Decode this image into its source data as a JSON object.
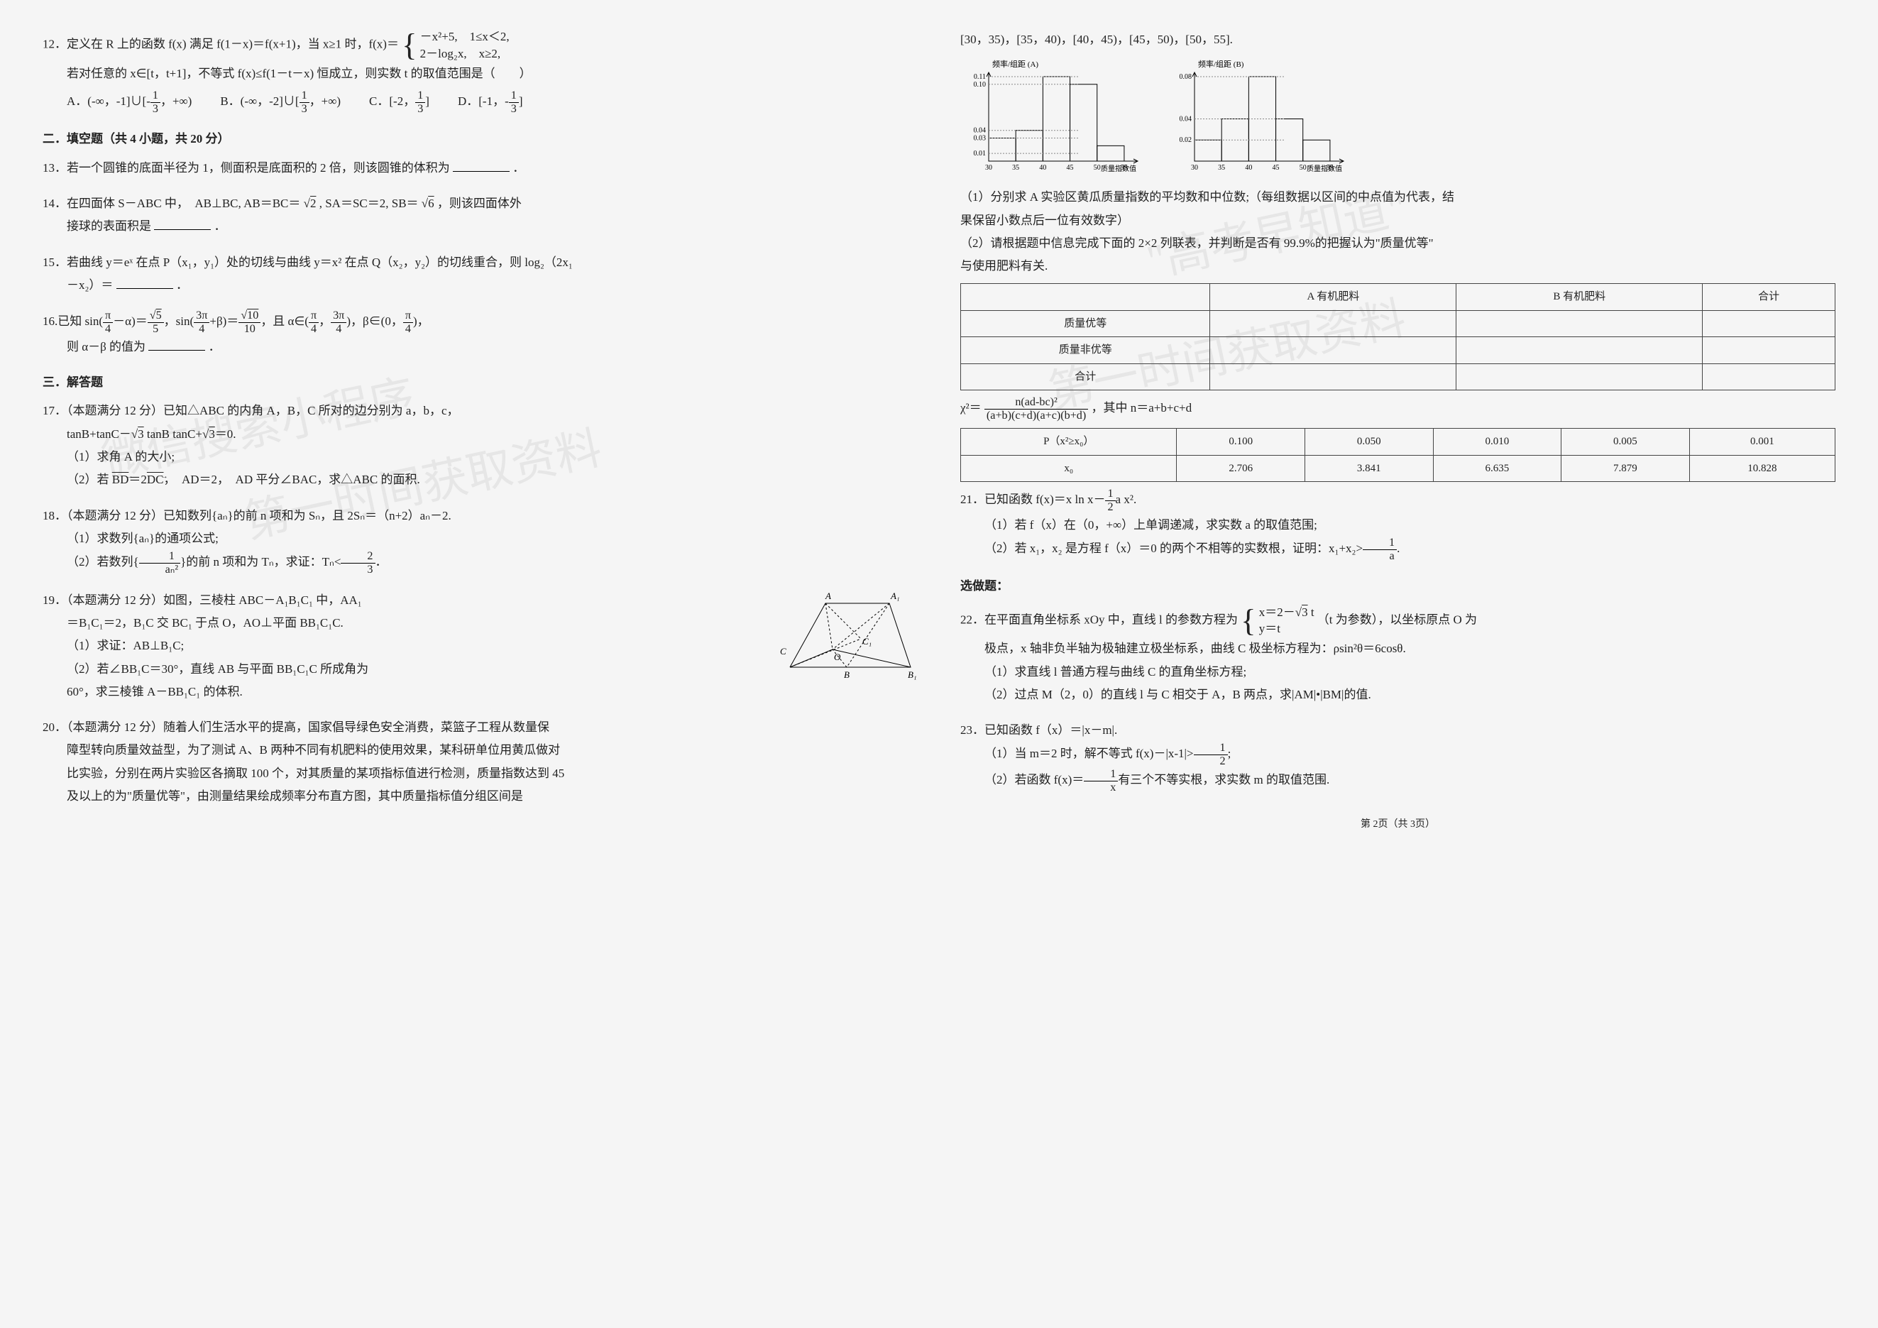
{
  "leftCol": {
    "q12": {
      "prefix": "12．定义在 R 上的函数 f(x) 满足 f(1－x)＝f(x+1)，当 x≥1 时，f(x)＝",
      "piece1": "－x²+5,　1≤x＜2,",
      "piece2": "2－log₂x,　x≥2,",
      "cond": "若对任意的 x∈[t，t+1]，不等式 f(x)≤f(1－t－x) 恒成立，则实数 t 的取值范围是（　　）",
      "optA": "A．(-∞，-1]∪[-",
      "optA_tail": "，+∞)",
      "optB": "B．(-∞，-2]∪[",
      "optB_tail": "，+∞)",
      "optC": "C．[-2，",
      "optC_tail": "]",
      "optD": "D．[-1，-",
      "optD_tail": "]"
    },
    "sec2_title": "二．填空题（共 4 小题，共 20 分）",
    "q13": "13．若一个圆锥的底面半径为 1，侧面积是底面积的 2 倍，则该圆锥的体积为",
    "q13_suffix": "．",
    "q14_a": "14．在四面体 S－ABC 中，　AB⊥BC, AB＝BC＝",
    "q14_b": ", SA＝SC＝2, SB＝",
    "q14_c": "，则该四面体外",
    "q14_line2": "接球的表面积是",
    "q14_suffix": "．",
    "q15_a": "15．若曲线 y＝eˣ 在点 P（x₁，y₁）处的切线与曲线 y＝x² 在点 Q（x₂，y₂）的切线重合，则 log₂（2x₁",
    "q15_b": "－x₂）＝",
    "q15_suffix": "．",
    "q16_a": "16.已知 sin(",
    "q16_b": "－α)＝",
    "q16_c": "，sin(",
    "q16_d": "+β)＝",
    "q16_e": "，且 α∈(",
    "q16_f": "，",
    "q16_g": ")，β∈(0，",
    "q16_h": ")，",
    "q16_line2": "则 α－β 的值为",
    "q16_suffix": "．",
    "sec3_title": "三．解答题",
    "q17_a": "17．（本题满分 12 分）已知△ABC 的内角 A，B，C 所对的边分别为 a，b，c，",
    "q17_b": "tanB+tanC－",
    "q17_c": " tanB tanC+",
    "q17_d": "＝0.",
    "q17_1": "（1）求角 A 的大小;",
    "q17_2a": "（2）若 ",
    "q17_2vec1": "BD",
    "q17_2mid": "＝2",
    "q17_2vec2": "DC",
    "q17_2b": "，　AD＝2，　AD 平分∠BAC，求△ABC 的面积.",
    "q18_a": "18．（本题满分 12 分）已知数列{aₙ}的前 n 项和为 Sₙ，且 2Sₙ＝（n+2）aₙ－2.",
    "q18_1": "（1）求数列{aₙ}的通项公式;",
    "q18_2a": "（2）若数列{",
    "q18_2b": "}的前 n 项和为 Tₙ，求证：Tₙ<",
    "q18_2c": "．",
    "q19_a": "19．（本题满分 12 分）如图，三棱柱 ABC－A₁B₁C₁ 中，AA₁",
    "q19_b": "＝B₁C₁＝2，B₁C 交 BC₁ 于点 O，AO⊥平面 BB₁C₁C.",
    "q19_1": "（1）求证：AB⊥B₁C;",
    "q19_2a": "（2）若∠BB₁C＝30°，直线 AB 与平面 BB₁C₁C 所成角为",
    "q19_2b": "60°，求三棱锥 A－BB₁C₁ 的体积.",
    "q20_a": "20．（本题满分 12 分）随着人们生活水平的提高，国家倡导绿色安全消费，菜篮子工程从数量保",
    "q20_b": "障型转向质量效益型，为了测试 A、B 两种不同有机肥料的使用效果，某科研单位用黄瓜做对",
    "q20_c": "比实验，分别在两片实验区各摘取 100 个，对其质量的某项指标值进行检测，质量指数达到 45",
    "q20_d": "及以上的为\"质量优等\"，由测量结果绘成频率分布直方图，其中质量指标值分组区间是"
  },
  "rightCol": {
    "intervals": "[30，35)，[35，40)，[40，45)，[45，50)，[50，55].",
    "chartA": {
      "title": "频率/组距 (A)",
      "xlabel": "质量指数值",
      "xticks": [
        "30",
        "35",
        "40",
        "45",
        "50",
        "55"
      ],
      "yvalues": [
        0.03,
        0.04,
        0.11,
        0.1,
        0.02
      ],
      "yticks": [
        0.01,
        0.03,
        0.04,
        0.1,
        0.11
      ],
      "ylabels": [
        "0.01",
        "0.03",
        "0.04",
        "0.10",
        "0.11"
      ],
      "bar_color": "none",
      "stroke": "#000",
      "grid_color": "#888",
      "background_color": "#f5f5f5"
    },
    "chartB": {
      "title": "频率/组距 (B)",
      "xlabel": "质量指数值",
      "xticks": [
        "30",
        "35",
        "40",
        "45",
        "50",
        "55"
      ],
      "yvalues": [
        0.02,
        0.04,
        0.08,
        0.04,
        0.02
      ],
      "yticks": [
        0.02,
        0.04,
        0.08
      ],
      "ylabels": [
        "0.02",
        "0.04",
        "0.08"
      ],
      "bar_color": "none",
      "stroke": "#000",
      "grid_color": "#888",
      "background_color": "#f5f5f5"
    },
    "p1": "（1）分别求 A 实验区黄瓜质量指数的平均数和中位数;（每组数据以区间的中点值为代表，结",
    "p1b": "果保留小数点后一位有效数字）",
    "p2": "（2）请根据题中信息完成下面的 2×2 列联表，并判断是否有 99.9%的把握认为\"质量优等\"",
    "p2b": "与使用肥料有关.",
    "conTable": {
      "cols": [
        "",
        "A 有机肥料",
        "B 有机肥料",
        "合计"
      ],
      "rows": [
        "质量优等",
        "质量非优等",
        "合计"
      ]
    },
    "chi_a": "χ²＝",
    "chi_b": "，其中 n＝a+b+c+d",
    "refTable": {
      "row1": [
        "P（x²≥x₀）",
        "0.100",
        "0.050",
        "0.010",
        "0.005",
        "0.001"
      ],
      "row2": [
        "x₀",
        "2.706",
        "3.841",
        "6.635",
        "7.879",
        "10.828"
      ]
    },
    "q21_a": "21．已知函数 f(x)＝x ln x－",
    "q21_b": "a x².",
    "q21_1": "（1）若 f（x）在（0，+∞）上单调递减，求实数 a 的取值范围;",
    "q21_2a": "（2）若 x₁，x₂ 是方程 f（x）＝0 的两个不相等的实数根，证明：x₁+x₂>",
    "q21_2b": ".",
    "sec_opt": "选做题：",
    "q22_a": "22．在平面直角坐标系 xOy 中，直线 l 的参数方程为",
    "q22_p1": "x＝2－",
    "q22_p1tail": " t",
    "q22_p2": "y＝t",
    "q22_b": "（t 为参数），以坐标原点 O 为",
    "q22_c": "极点，x 轴非负半轴为极轴建立极坐标系，曲线 C 极坐标方程为：ρsin²θ＝6cosθ.",
    "q22_1": "（1）求直线 l 普通方程与曲线 C 的直角坐标方程;",
    "q22_2": "（2）过点 M（2，0）的直线 l 与 C 相交于 A，B 两点，求|AM|•|BM|的值.",
    "q23_a": "23．已知函数 f（x）＝|x－m|.",
    "q23_1a": "（1）当 m＝2 时，解不等式 f(x)－|x-1|>",
    "q23_1b": ";",
    "q23_2a": "（2）若函数 f(x)＝",
    "q23_2b": "有三个不等实根，求实数 m 的取值范围.",
    "footer": "第 2页（共 3页）"
  },
  "watermarks": {
    "w1": "\"高考早知道\"",
    "w2": "微信搜索小程序",
    "w3": "第一时间获取资料"
  }
}
